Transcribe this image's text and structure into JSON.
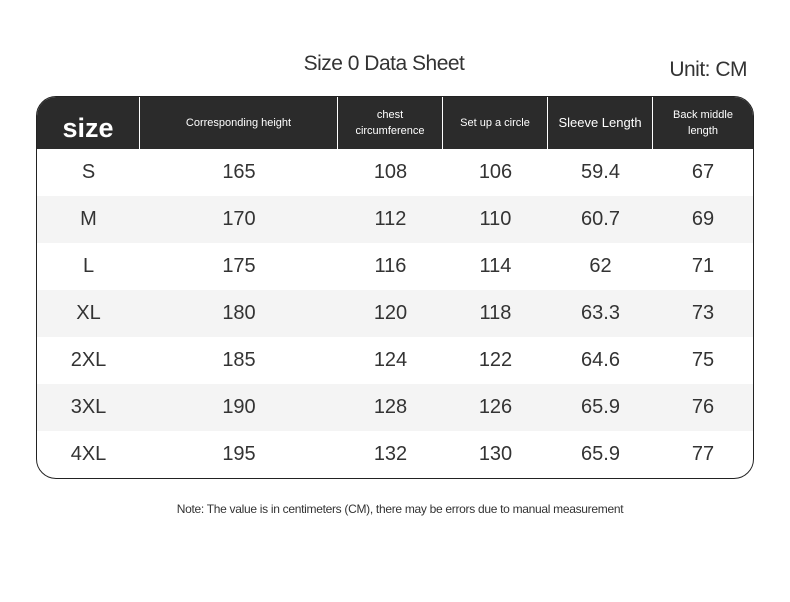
{
  "header": {
    "title": "Size 0 Data Sheet",
    "unit": "Unit: CM"
  },
  "table": {
    "columns": [
      "size",
      "Corresponding height",
      "chest circumference",
      "Set up a circle",
      "Sleeve Length",
      "Back middle length"
    ],
    "rows": [
      [
        "S",
        "165",
        "108",
        "106",
        "59.4",
        "67"
      ],
      [
        "M",
        "170",
        "112",
        "110",
        "60.7",
        "69"
      ],
      [
        "L",
        "175",
        "116",
        "114",
        "62",
        "71"
      ],
      [
        "XL",
        "180",
        "120",
        "118",
        "63.3",
        "73"
      ],
      [
        "2XL",
        "185",
        "124",
        "122",
        "64.6",
        "75"
      ],
      [
        "3XL",
        "190",
        "128",
        "126",
        "65.9",
        "76"
      ],
      [
        "4XL",
        "195",
        "132",
        "130",
        "65.9",
        "77"
      ]
    ]
  },
  "footer": {
    "note": "Note: The value is in centimeters (CM), there may be errors due to manual measurement"
  }
}
